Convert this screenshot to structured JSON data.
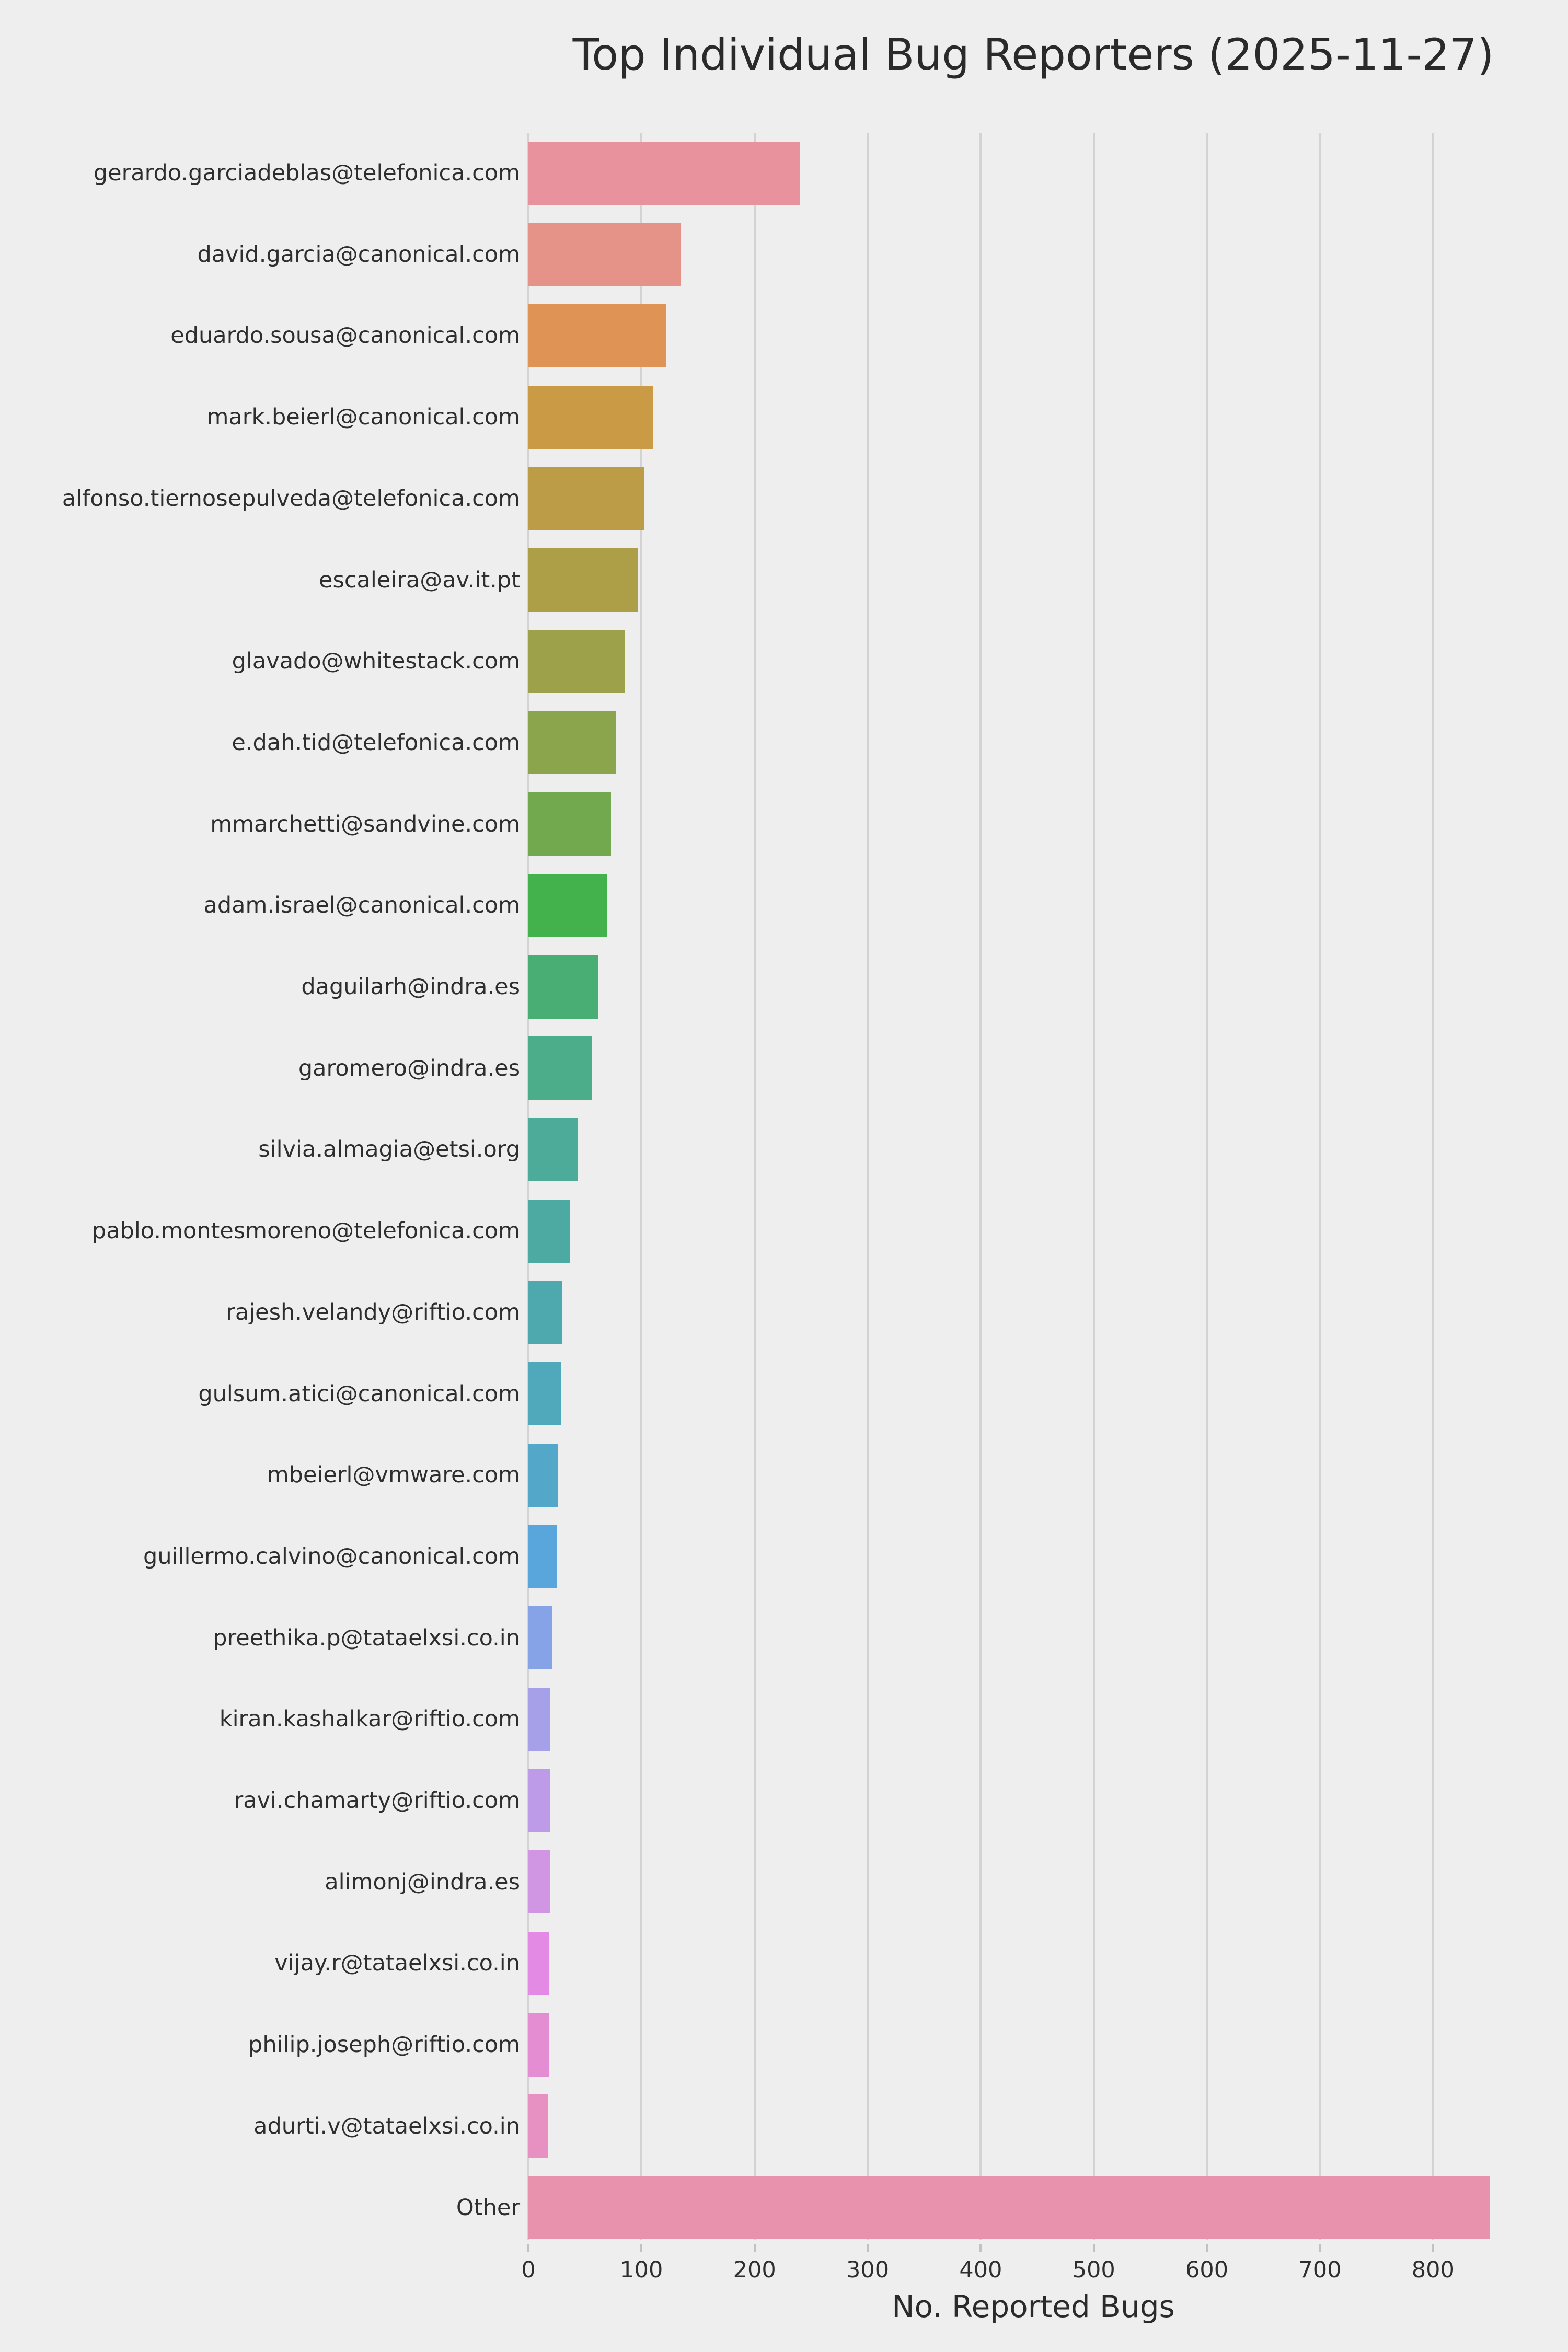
{
  "chart_data": {
    "type": "bar",
    "orientation": "horizontal",
    "title": "Top Individual Bug Reporters (2025-11-27)",
    "xlabel": "No. Reported Bugs",
    "ylabel": "",
    "xlim": [
      0,
      893
    ],
    "xticks": [
      0,
      100,
      200,
      300,
      400,
      500,
      600,
      700,
      800
    ],
    "grid": true,
    "legend": false,
    "categories": [
      "gerardo.garciadeblas@telefonica.com",
      "david.garcia@canonical.com",
      "eduardo.sousa@canonical.com",
      "mark.beierl@canonical.com",
      "alfonso.tiernosepulveda@telefonica.com",
      "escaleira@av.it.pt",
      "glavado@whitestack.com",
      "e.dah.tid@telefonica.com",
      "mmarchetti@sandvine.com",
      "adam.israel@canonical.com",
      "daguilarh@indra.es",
      "garomero@indra.es",
      "silvia.almagia@etsi.org",
      "pablo.montesmoreno@telefonica.com",
      "rajesh.velandy@riftio.com",
      "gulsum.atici@canonical.com",
      "mbeierl@vmware.com",
      "guillermo.calvino@canonical.com",
      "preethika.p@tataelxsi.co.in",
      "kiran.kashalkar@riftio.com",
      "ravi.chamarty@riftio.com",
      "alimonj@indra.es",
      "vijay.r@tataelxsi.co.in",
      "philip.joseph@riftio.com",
      "adurti.v@tataelxsi.co.in",
      "Other"
    ],
    "values": [
      240,
      135,
      122,
      110,
      102,
      97,
      85,
      77,
      73,
      70,
      62,
      56,
      44,
      37,
      30,
      29,
      26,
      25,
      21,
      19,
      19,
      19,
      18,
      18,
      17,
      850
    ],
    "bar_colors": [
      "#e8929e",
      "#e59288",
      "#df9455",
      "#ca9a45",
      "#bd9c47",
      "#ad9e48",
      "#9da24a",
      "#8aa54c",
      "#73a94e",
      "#44b24c",
      "#49ae73",
      "#4bad8a",
      "#4cab99",
      "#4daaa3",
      "#4ea9ae",
      "#50a8bb",
      "#53a7c9",
      "#59a6dc",
      "#86a3e8",
      "#a6a0e8",
      "#bd9be8",
      "#d095e3",
      "#e28ae4",
      "#e48dd3",
      "#e790c2",
      "#e892ae"
    ]
  },
  "style": {
    "background": "#efeeee",
    "grid_color": "#d4d2d3",
    "tick_color": "#c2c2c2",
    "text_color": "#2e2e2e"
  }
}
